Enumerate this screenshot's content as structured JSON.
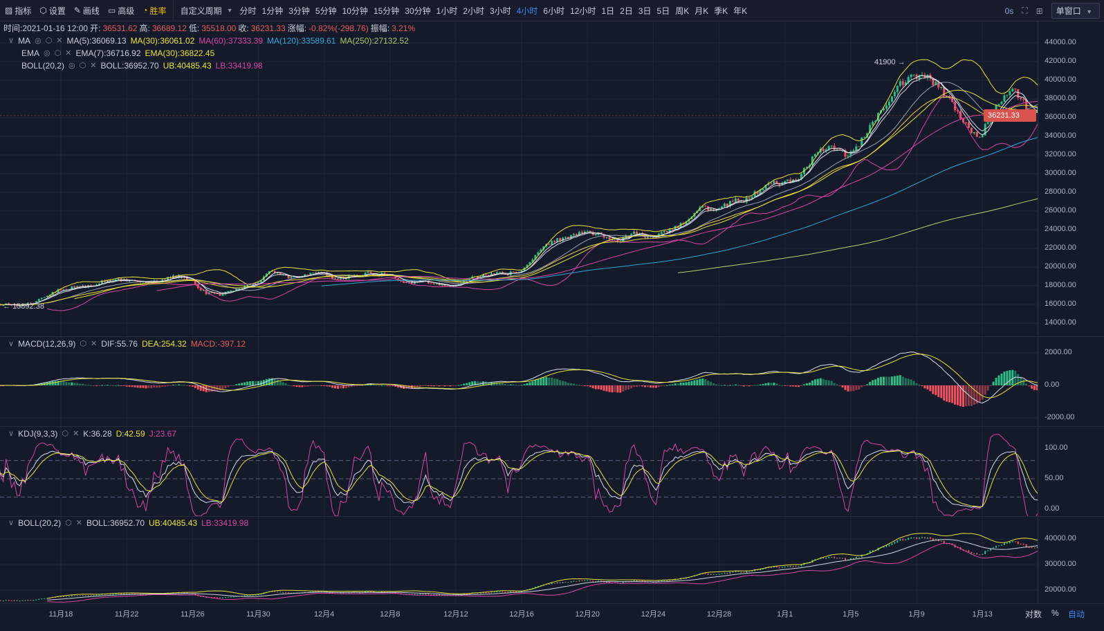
{
  "toolbar": {
    "items": [
      {
        "label": "指标",
        "icon": "chart-line-icon"
      },
      {
        "label": "设置",
        "icon": "hexagon-gear-icon"
      },
      {
        "label": "画线",
        "icon": "pencil-icon"
      },
      {
        "label": "高级",
        "icon": "window-icon"
      },
      {
        "label": "胜率",
        "icon": "gauge-icon"
      }
    ],
    "custom_period": "自定义周期",
    "periods": [
      "分时",
      "1分钟",
      "3分钟",
      "5分钟",
      "10分钟",
      "15分钟",
      "30分钟",
      "1小时",
      "2小时",
      "3小时",
      "4小时",
      "6小时",
      "12小时",
      "1日",
      "2日",
      "3日",
      "5日",
      "周K",
      "月K",
      "季K",
      "年K"
    ],
    "active_period": "4小时",
    "timer": "0s",
    "window_mode": "单窗口"
  },
  "info": {
    "time": "时间:2021-01-16 12:00",
    "open_label": "开:",
    "open": "36531.62",
    "high_label": "高:",
    "high": "36689.12",
    "low_label": "低:",
    "low": "35518.00",
    "close_label": "收:",
    "close": "36231.33",
    "change_label": "涨幅:",
    "change": "-0.82%(-298.76)",
    "amp_label": "振幅:",
    "amp": "3.21%"
  },
  "legends": {
    "ma": {
      "name": "MA",
      "ma5": "MA(5):36069.13",
      "ma30": "MA(30):36061.02",
      "ma60": "MA(60):37333.39",
      "ma120": "MA(120):33589.61",
      "ma250": "MA(250):27132.52"
    },
    "ema": {
      "name": "EMA",
      "ema7": "EMA(7):36716.92",
      "ema30": "EMA(30):36822.45"
    },
    "boll": {
      "name": "BOLL(20,2)",
      "mid": "BOLL:36952.70",
      "ub": "UB:40485.43",
      "lb": "LB:33419.98"
    },
    "macd": {
      "name": "MACD(12,26,9)",
      "dif": "DIF:55.76",
      "dea": "DEA:254.32",
      "macd": "MACD:-397.12"
    },
    "kdj": {
      "name": "KDJ(9,3,3)",
      "k": "K:36.28",
      "d": "D:42.59",
      "j": "J:23.67"
    },
    "boll2": {
      "name": "BOLL(20,2)",
      "mid": "BOLL:36952.70",
      "ub": "UB:40485.43",
      "lb": "LB:33419.98"
    }
  },
  "annotations": {
    "max_label": "41900",
    "min_label": "15892.38",
    "last_price": "36231.33"
  },
  "axes": {
    "price": [
      "44000.00",
      "42000.00",
      "40000.00",
      "38000.00",
      "36000.00",
      "34000.00",
      "32000.00",
      "30000.00",
      "28000.00",
      "26000.00",
      "24000.00",
      "22000.00",
      "20000.00",
      "18000.00",
      "16000.00",
      "14000.00"
    ],
    "macd": [
      "2000.00",
      "0.00",
      "-2000.00"
    ],
    "kdj": [
      "100.00",
      "50.00",
      "0.00"
    ],
    "boll": [
      "40000.00",
      "30000.00",
      "20000.00"
    ],
    "time": [
      "11月18",
      "11月22",
      "11月26",
      "11月30",
      "12月4",
      "12月8",
      "12月12",
      "12月16",
      "12月20",
      "12月24",
      "12月28",
      "1月1",
      "1月5",
      "1月9",
      "1月13"
    ],
    "bottom_right": [
      "对数",
      "%",
      "自动"
    ]
  },
  "colors": {
    "up": "#2ebd85",
    "down": "#f0525f",
    "ma5": "#e6e6ef",
    "ma30": "#e8e23b",
    "ma60": "#d646a6",
    "ma120": "#2fa6d8",
    "ma250": "#b8d36e",
    "accent": "#3d8af7",
    "last_price_bg": "#d9534f"
  },
  "chart_data": {
    "type": "candlestick",
    "interval": "4h",
    "first_day": "2020-11-14",
    "last_day": "2021-01-16",
    "daily_close": [
      16000,
      15900,
      16700,
      17600,
      17800,
      18000,
      18600,
      18700,
      18400,
      18400,
      19100,
      18700,
      17100,
      17100,
      17700,
      18200,
      19600,
      18800,
      19200,
      19400,
      18700,
      19150,
      19350,
      19150,
      18300,
      18550,
      18250,
      18000,
      18800,
      19150,
      19270,
      19430,
      21300,
      22800,
      23100,
      23800,
      23500,
      22700,
      23800,
      23200,
      23700,
      24600,
      26400,
      26200,
      27000,
      27300,
      28800,
      29000,
      29400,
      32100,
      33000,
      31900,
      33900,
      36800,
      39400,
      40600,
      40200,
      38300,
      35500,
      33900,
      37300,
      39100,
      36800,
      36231.33
    ],
    "price_range": [
      13000,
      45500
    ],
    "macd_range": [
      -2300,
      2300
    ],
    "kdj_range": [
      -5,
      120
    ],
    "boll_range": [
      16000,
      44000
    ]
  }
}
